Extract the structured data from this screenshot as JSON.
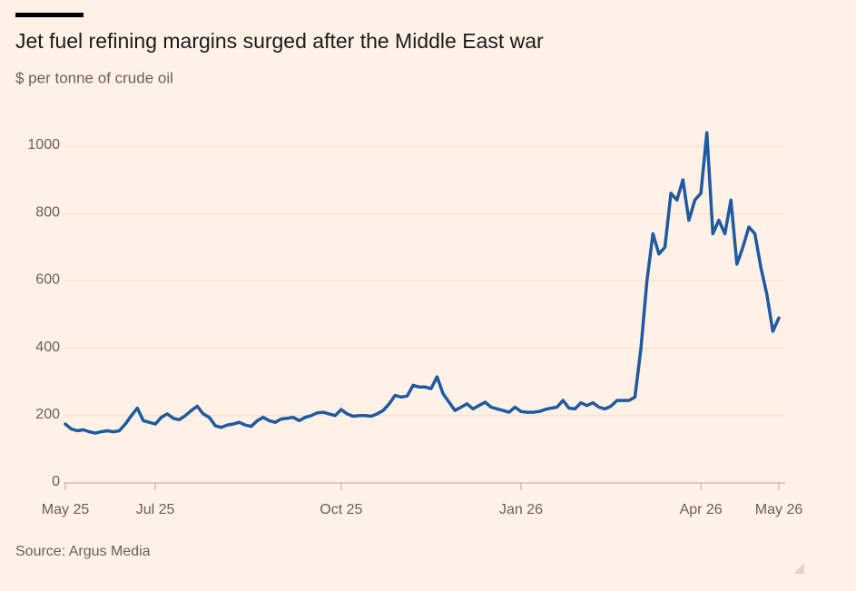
{
  "chart_data": {
    "type": "line",
    "title": "Jet fuel refining margins surged after the Middle East war",
    "subtitle": "$ per tonne of crude oil",
    "source": "Source: Argus Media",
    "categories": [
      "May 25",
      null,
      null,
      null,
      null,
      null,
      null,
      null,
      null,
      null,
      null,
      null,
      null,
      null,
      null,
      "Jul 25",
      null,
      null,
      null,
      null,
      null,
      null,
      null,
      null,
      null,
      null,
      null,
      null,
      null,
      null,
      null,
      null,
      null,
      null,
      null,
      null,
      null,
      null,
      null,
      null,
      null,
      null,
      null,
      null,
      null,
      null,
      "Oct 25",
      null,
      null,
      null,
      null,
      null,
      null,
      null,
      null,
      null,
      null,
      null,
      null,
      null,
      null,
      null,
      null,
      null,
      null,
      null,
      null,
      null,
      null,
      null,
      null,
      null,
      null,
      null,
      null,
      null,
      "Jan 26",
      null,
      null,
      null,
      null,
      null,
      null,
      null,
      null,
      null,
      null,
      null,
      null,
      null,
      null,
      null,
      null,
      null,
      null,
      null,
      null,
      null,
      null,
      null,
      null,
      null,
      null,
      null,
      null,
      null,
      "Apr 26",
      null,
      null,
      null,
      null,
      null,
      null,
      null,
      null,
      null,
      null,
      null,
      null,
      "May 26"
    ],
    "series": [
      {
        "name": "Jet fuel refining margin",
        "color": "#1f5aa0",
        "values": [
          175,
          160,
          155,
          158,
          152,
          148,
          152,
          155,
          152,
          155,
          175,
          200,
          222,
          185,
          180,
          175,
          195,
          205,
          192,
          188,
          200,
          215,
          228,
          205,
          195,
          170,
          165,
          172,
          175,
          180,
          172,
          168,
          185,
          195,
          185,
          180,
          190,
          192,
          195,
          185,
          195,
          200,
          208,
          210,
          205,
          200,
          218,
          205,
          198,
          200,
          200,
          198,
          205,
          215,
          235,
          260,
          255,
          258,
          290,
          285,
          285,
          280,
          315,
          265,
          240,
          215,
          225,
          235,
          220,
          230,
          240,
          225,
          220,
          215,
          210,
          225,
          212,
          210,
          210,
          212,
          218,
          222,
          225,
          245,
          222,
          220,
          238,
          230,
          238,
          225,
          220,
          228,
          245,
          245,
          245,
          255,
          400,
          600,
          740,
          680,
          700,
          860,
          840,
          900,
          780,
          840,
          860,
          1040,
          740,
          780,
          740,
          840,
          650,
          700,
          760,
          740,
          640,
          560,
          450,
          490
        ]
      }
    ],
    "ylim": [
      0,
      1000
    ],
    "yticks": [
      0,
      200,
      400,
      600,
      800,
      1000
    ],
    "grid": true
  }
}
